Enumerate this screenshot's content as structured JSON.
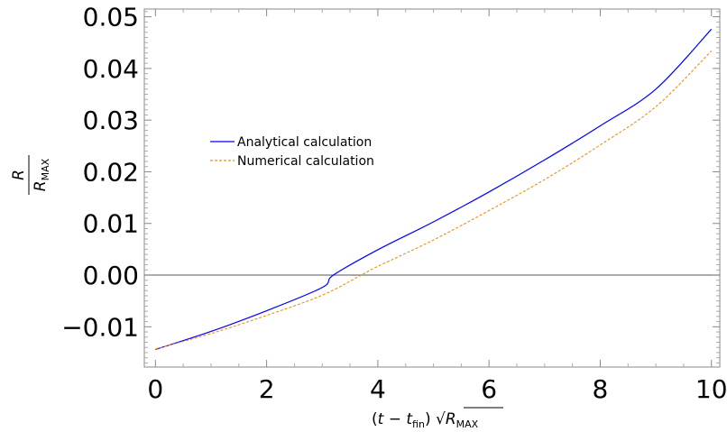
{
  "chart_data": {
    "type": "line",
    "xlabel": "(t − t_fin) √R_MAX",
    "ylabel": "R / R_MAX",
    "xlim": [
      -0.2,
      10.15
    ],
    "ylim": [
      -0.0178,
      0.0515
    ],
    "x_ticks": [
      0,
      2,
      4,
      6,
      8,
      10
    ],
    "x_tick_labels": [
      "0",
      "2",
      "4",
      "6",
      "8",
      "10"
    ],
    "y_ticks": [
      -0.01,
      0.0,
      0.01,
      0.02,
      0.03,
      0.04,
      0.05
    ],
    "y_tick_labels": [
      "−0.01",
      "0.00",
      "0.01",
      "0.02",
      "0.03",
      "0.04",
      "0.05"
    ],
    "reference_line": 0.0,
    "legend_position": "center-left",
    "grid": false,
    "series": [
      {
        "name": "Analytical calculation",
        "color": "#0000ff",
        "style": "solid",
        "x": [
          0,
          1,
          2,
          3,
          3.2,
          4,
          5,
          6,
          7,
          8,
          9,
          10
        ],
        "y": [
          -0.0144,
          -0.0109,
          -0.0069,
          -0.0024,
          0.0,
          0.0049,
          0.0103,
          0.0161,
          0.0223,
          0.0289,
          0.036,
          0.0476
        ]
      },
      {
        "name": "Numerical calculation",
        "color": "#e8901a",
        "style": "dashed",
        "x": [
          0,
          1,
          2,
          3,
          3.7,
          4,
          5,
          6,
          7,
          8,
          9,
          10
        ],
        "y": [
          -0.0143,
          -0.0113,
          -0.0078,
          -0.0039,
          0.0,
          0.0017,
          0.0068,
          0.0125,
          0.0185,
          0.0252,
          0.0326,
          0.0434
        ]
      }
    ]
  }
}
